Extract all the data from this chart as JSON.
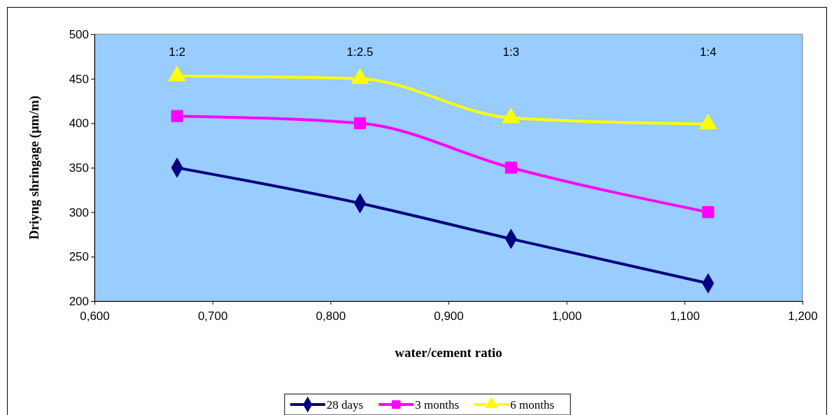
{
  "chart_data": {
    "type": "line",
    "xlabel": "water/cement ratio",
    "ylabel": "Driyng shringage (µm/m)",
    "xlim": [
      0.6,
      1.2
    ],
    "xticks": [
      {
        "value": 0.6,
        "label": "0,600"
      },
      {
        "value": 0.7,
        "label": "0,700"
      },
      {
        "value": 0.8,
        "label": "0,800"
      },
      {
        "value": 0.9,
        "label": "0,900"
      },
      {
        "value": 1.0,
        "label": "1,000"
      },
      {
        "value": 1.1,
        "label": "1,100"
      },
      {
        "value": 1.2,
        "label": "1,200"
      }
    ],
    "ylim": [
      200,
      500
    ],
    "yticks": [
      200,
      250,
      300,
      350,
      400,
      450,
      500
    ],
    "x": [
      0.67,
      0.825,
      0.953,
      1.12
    ],
    "series": [
      {
        "name": "28 days",
        "color": "#000080",
        "marker": "diamond",
        "values": [
          350,
          310,
          270,
          220
        ]
      },
      {
        "name": "3 months",
        "color": "#ff00ff",
        "marker": "square",
        "values": [
          408,
          400,
          350,
          300
        ]
      },
      {
        "name": "6 months",
        "color": "#ffff00",
        "marker": "triangle",
        "values": [
          453,
          450,
          406,
          399
        ]
      }
    ],
    "annotations": [
      "1:2",
      "1:2.5",
      "1:3",
      "1:4"
    ],
    "grid": false,
    "legend": "bottom",
    "line_style": "solid"
  }
}
